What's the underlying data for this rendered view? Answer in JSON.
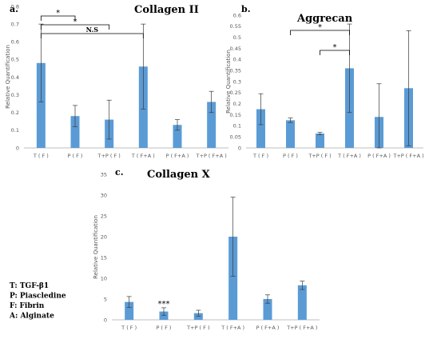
{
  "colors": {
    "bar": "#5b9bd5",
    "error": "#3a3a3a",
    "axis": "#bfbfbf"
  },
  "legend": [
    "T: TGF-β1",
    "P: Piascledine",
    "F: Fibrin",
    "A: Alginate"
  ],
  "chart_data": [
    {
      "type": "bar",
      "panel_label": "a.",
      "title": "Collagen II",
      "ylabel": "Relative Quantification",
      "ylim": [
        0,
        0.8
      ],
      "yticks": [
        "0",
        "0.1",
        "0.2",
        "0.3",
        "0.4",
        "0.5",
        "0.6",
        "0.7",
        "0.8"
      ],
      "categories": [
        "T ( F )",
        "P ( F )",
        "T+P ( F )",
        "T ( F+A )",
        "P ( F+A )",
        "T+P ( F+A )"
      ],
      "values": [
        0.48,
        0.18,
        0.16,
        0.46,
        0.13,
        0.26
      ],
      "errors": [
        0.22,
        0.06,
        0.11,
        0.24,
        0.03,
        0.06
      ],
      "significance": [
        {
          "from": 0,
          "to": 1,
          "label": "*"
        },
        {
          "from": 0,
          "to": 2,
          "label": "*"
        },
        {
          "from": 0,
          "to": 3,
          "label": "N.S"
        }
      ],
      "star_marks": []
    },
    {
      "type": "bar",
      "panel_label": "b.",
      "title": "Aggrecan",
      "ylabel": "Relative Quantification",
      "ylim": [
        0,
        0.6
      ],
      "yticks": [
        "0",
        "0.05",
        "0.1",
        "0.15",
        "0.2",
        "0.25",
        "0.3",
        "0.35",
        "0.4",
        "0.45",
        "0.5",
        "0.55",
        "0.6"
      ],
      "categories": [
        "T ( F )",
        "P ( F )",
        "T+P ( F )",
        "T ( F+A )",
        "P ( F+A )",
        "T+P ( F+A )"
      ],
      "values": [
        0.175,
        0.125,
        0.065,
        0.36,
        0.14,
        0.27
      ],
      "errors": [
        0.07,
        0.01,
        0.005,
        0.2,
        0.15,
        0.26
      ],
      "significance": [
        {
          "from": 1,
          "to": 3,
          "label": "*"
        },
        {
          "from": 2,
          "to": 3,
          "label": "*"
        }
      ],
      "star_marks": []
    },
    {
      "type": "bar",
      "panel_label": "c.",
      "title": "Collagen X",
      "ylabel": "Relative Quantification",
      "ylim": [
        0,
        35
      ],
      "yticks": [
        "0",
        "5",
        "10",
        "15",
        "20",
        "25",
        "30",
        "35"
      ],
      "categories": [
        "T ( F )",
        "P ( F )",
        "T+P ( F )",
        "T ( F+A )",
        "P ( F+A )",
        "T+P ( F+A )"
      ],
      "values": [
        4.3,
        2.0,
        1.6,
        20.0,
        5.0,
        8.3
      ],
      "errors": [
        1.3,
        0.9,
        0.7,
        9.5,
        1.0,
        1.0
      ],
      "significance": [],
      "star_marks": [
        {
          "index": 1,
          "label": "***"
        }
      ]
    }
  ]
}
